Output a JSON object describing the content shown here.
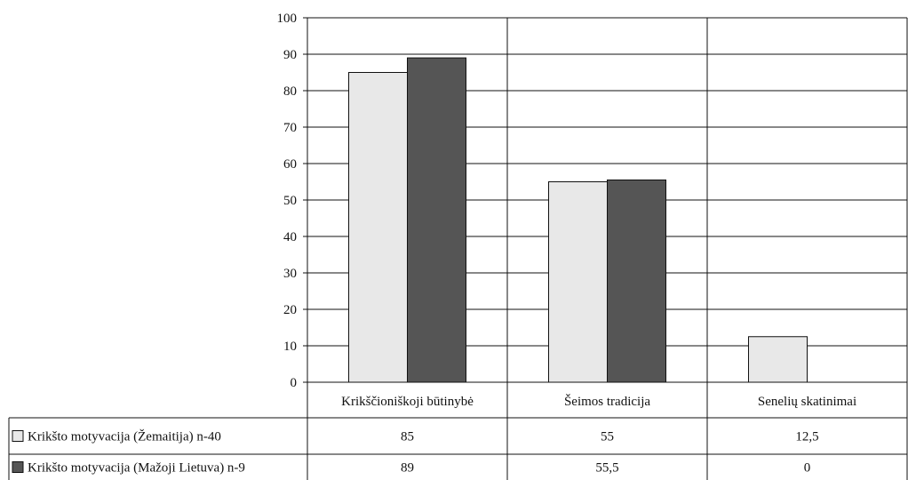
{
  "chart_data": {
    "type": "bar",
    "categories": [
      "Krikščioniškoji būtinybė",
      "Šeimos tradicija",
      "Senelių skatinimai"
    ],
    "series": [
      {
        "name": "Krikšto motyvacija (Žemaitija) n-40",
        "values": [
          85,
          55,
          12.5
        ],
        "value_labels": [
          "85",
          "55",
          "12,5"
        ],
        "color": "#e8e8e8"
      },
      {
        "name": "Krikšto motyvacija (Mažoji Lietuva) n-9",
        "values": [
          89,
          55.5,
          0
        ],
        "value_labels": [
          "89",
          "55,5",
          "0"
        ],
        "color": "#555555"
      }
    ],
    "yticks": [
      "0",
      "10",
      "20",
      "30",
      "40",
      "50",
      "60",
      "70",
      "80",
      "90",
      "100"
    ],
    "ylim": [
      0,
      100
    ],
    "grid": true,
    "legend": "data-table-left"
  }
}
